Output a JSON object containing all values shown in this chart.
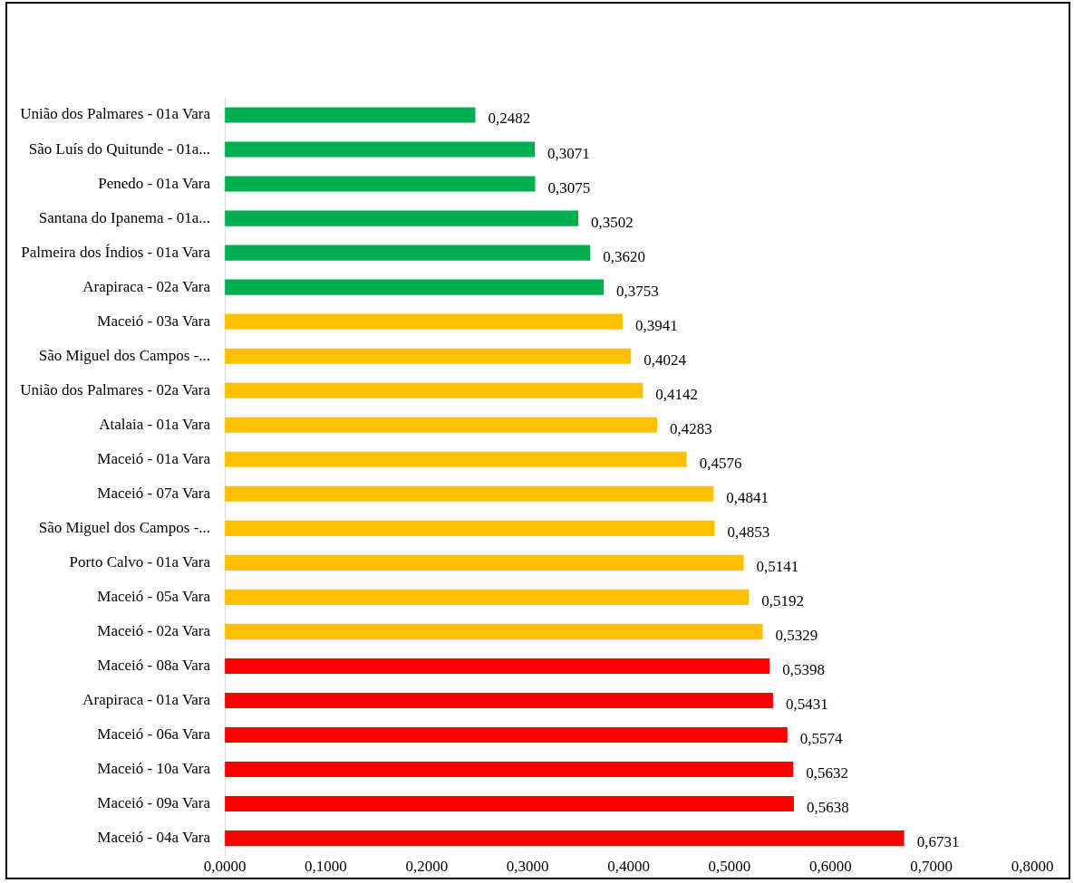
{
  "chart_data": {
    "type": "bar",
    "orientation": "horizontal",
    "categories": [
      "União dos Palmares - 01a Vara",
      "São Luís do Quitunde - 01a...",
      "Penedo - 01a Vara",
      "Santana do Ipanema - 01a...",
      "Palmeira dos Índios - 01a Vara",
      "Arapiraca - 02a Vara",
      "Maceió - 03a Vara",
      "São Miguel dos Campos -...",
      "União dos Palmares - 02a Vara",
      "Atalaia - 01a Vara",
      "Maceió - 01a Vara",
      "Maceió - 07a Vara",
      "São Miguel dos Campos -...",
      "Porto Calvo - 01a Vara",
      "Maceió - 05a Vara",
      "Maceió - 02a Vara",
      "Maceió - 08a Vara",
      "Arapiraca - 01a Vara",
      "Maceió - 06a Vara",
      "Maceió - 10a Vara",
      "Maceió - 09a Vara",
      "Maceió - 04a Vara"
    ],
    "values": [
      0.2482,
      0.3071,
      0.3075,
      0.3502,
      0.362,
      0.3753,
      0.3941,
      0.4024,
      0.4142,
      0.4283,
      0.4576,
      0.4841,
      0.4853,
      0.5141,
      0.5192,
      0.5329,
      0.5398,
      0.5431,
      0.5574,
      0.5632,
      0.5638,
      0.6731
    ],
    "value_labels": [
      "0,2482",
      "0,3071",
      "0,3075",
      "0,3502",
      "0,3620",
      "0,3753",
      "0,3941",
      "0,4024",
      "0,4142",
      "0,4283",
      "0,4576",
      "0,4841",
      "0,4853",
      "0,5141",
      "0,5192",
      "0,5329",
      "0,5398",
      "0,5431",
      "0,5574",
      "0,5632",
      "0,5638",
      "0,6731"
    ],
    "colors": [
      "#00b050",
      "#00b050",
      "#00b050",
      "#00b050",
      "#00b050",
      "#00b050",
      "#ffc000",
      "#ffc000",
      "#ffc000",
      "#ffc000",
      "#ffc000",
      "#ffc000",
      "#ffc000",
      "#ffc000",
      "#ffc000",
      "#ffc000",
      "#ff0000",
      "#ff0000",
      "#ff0000",
      "#ff0000",
      "#ff0000",
      "#ff0000"
    ],
    "xlim": [
      0,
      0.8
    ],
    "xticks": [
      {
        "value": 0,
        "label": "0,0000"
      },
      {
        "value": 0.1,
        "label": "0,1000"
      },
      {
        "value": 0.2,
        "label": "0,2000"
      },
      {
        "value": 0.3,
        "label": "0,3000"
      },
      {
        "value": 0.4,
        "label": "0,4000"
      },
      {
        "value": 0.5,
        "label": "0,5000"
      },
      {
        "value": 0.6,
        "label": "0,6000"
      },
      {
        "value": 0.7,
        "label": "0,7000"
      },
      {
        "value": 0.8,
        "label": "0,8000"
      }
    ],
    "grid": false,
    "legend": false
  }
}
